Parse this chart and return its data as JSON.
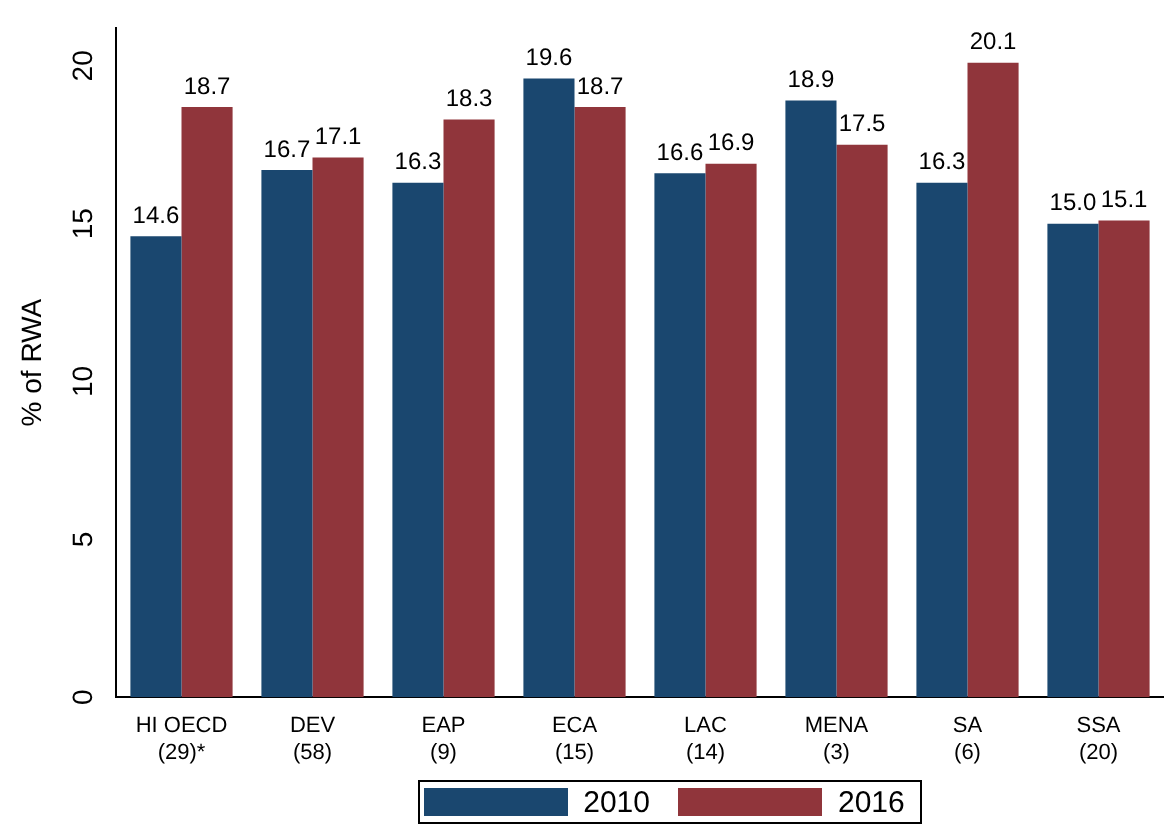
{
  "chart_data": {
    "type": "bar",
    "ylabel": "% of RWA",
    "categories": [
      "HI OECD\n(29)*",
      "DEV\n(58)",
      "EAP\n(9)",
      "ECA\n(15)",
      "LAC\n(14)",
      "MENA\n(3)",
      "SA\n(6)",
      "SSA\n(20)"
    ],
    "series": [
      {
        "name": "2010",
        "color": "#1a476f",
        "values": [
          14.6,
          16.7,
          16.3,
          19.6,
          16.6,
          18.9,
          16.3,
          15.0
        ],
        "value_labels": [
          "14.6",
          "16.7",
          "16.3",
          "19.6",
          "16.6",
          "18.9",
          "16.3",
          "15.0"
        ]
      },
      {
        "name": "2016",
        "color": "#90353b",
        "values": [
          18.7,
          17.1,
          18.3,
          18.7,
          16.9,
          17.5,
          20.1,
          15.1
        ],
        "value_labels": [
          "18.7",
          "17.1",
          "18.3",
          "18.7",
          "16.9",
          "17.5",
          "20.1",
          "15.1"
        ]
      }
    ],
    "ylim": [
      0,
      21.2
    ],
    "yticks": [
      0,
      5,
      10,
      15,
      20
    ],
    "grid": false,
    "legend": "bottom"
  }
}
